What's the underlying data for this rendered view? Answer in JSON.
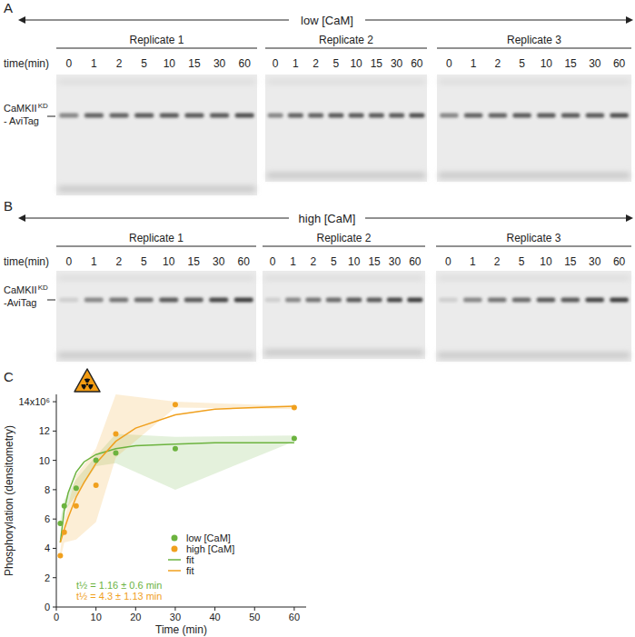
{
  "panels": [
    {
      "letter": "A",
      "condition": "low [CaM]",
      "time_label": "time(min)",
      "times": [
        0,
        1,
        2,
        5,
        10,
        15,
        30,
        60
      ],
      "replicates": [
        "Replicate 1",
        "Replicate 2",
        "Replicate 3"
      ],
      "band_label": "CaMKII",
      "band_label_sup": "KD",
      "band_label_2": "- AviTag"
    },
    {
      "letter": "B",
      "condition": "high [CaM]",
      "time_label": "time(min)",
      "times": [
        0,
        1,
        2,
        5,
        10,
        15,
        30,
        60
      ],
      "replicates": [
        "Replicate 1",
        "Replicate 2",
        "Replicate 3"
      ],
      "band_label": "CaMKII",
      "band_label_sup": "KD",
      "band_label_2": "-AviTag"
    }
  ],
  "chart_panel_letter": "C",
  "chart_data": {
    "type": "scatter",
    "x_label": "Time (min)",
    "y_label": "Phosphorylation (densitometry)",
    "xlim": [
      0,
      63
    ],
    "xticks": [
      0,
      10,
      20,
      30,
      40,
      50,
      60
    ],
    "ylim": [
      0,
      14.5
    ],
    "yticks": [
      0,
      2,
      4,
      6,
      8,
      10,
      12,
      {
        "value": 14,
        "label": "14x10⁶"
      }
    ],
    "grid": false,
    "series": [
      {
        "name": "low [CaM]",
        "type": "scatter",
        "marker": "circle",
        "color": "#6cb33f",
        "x": [
          1,
          2,
          5,
          10,
          15,
          30,
          60
        ],
        "values": [
          5.7,
          6.9,
          8.1,
          10.0,
          10.5,
          10.8,
          11.5
        ],
        "lower": [
          5.5,
          6.5,
          7.6,
          9.6,
          9.8,
          8.0,
          11.3
        ],
        "upper": [
          5.9,
          7.3,
          8.7,
          10.3,
          11.8,
          11.6,
          11.7
        ]
      },
      {
        "name": "high [CaM]",
        "type": "scatter",
        "marker": "circle",
        "color": "#f0a01e",
        "x": [
          1,
          2,
          5,
          10,
          15,
          30,
          60
        ],
        "values": [
          3.5,
          5.1,
          6.9,
          8.3,
          11.8,
          13.8,
          13.6
        ],
        "lower": [
          3.2,
          4.4,
          4.6,
          5.8,
          10.2,
          13.6,
          13.5
        ],
        "upper": [
          3.8,
          6.0,
          9.0,
          10.8,
          14.5,
          14.0,
          13.7
        ]
      },
      {
        "name": "fit",
        "type": "line",
        "line_style": "solid",
        "color": "#6cb33f",
        "x": [
          1,
          2,
          3,
          5,
          7,
          10,
          15,
          20,
          30,
          40,
          50,
          60
        ],
        "values": [
          4.4,
          6.6,
          7.8,
          9.2,
          9.9,
          10.4,
          10.8,
          11.0,
          11.1,
          11.2,
          11.2,
          11.2
        ]
      },
      {
        "name": "fit",
        "type": "line",
        "line_style": "solid",
        "color": "#f0a01e",
        "x": [
          1,
          2,
          3,
          5,
          7,
          10,
          15,
          20,
          30,
          40,
          50,
          60
        ],
        "values": [
          4.4,
          5.3,
          6.1,
          7.5,
          8.5,
          9.8,
          11.3,
          12.2,
          13.1,
          13.5,
          13.6,
          13.7
        ]
      }
    ],
    "annotations": [
      {
        "text": "t½ = 1.16 ± 0.6 min",
        "color": "#6cb33f"
      },
      {
        "text": "t½ = 4.3 ± 1.13 min",
        "color": "#f0a01e"
      }
    ]
  }
}
